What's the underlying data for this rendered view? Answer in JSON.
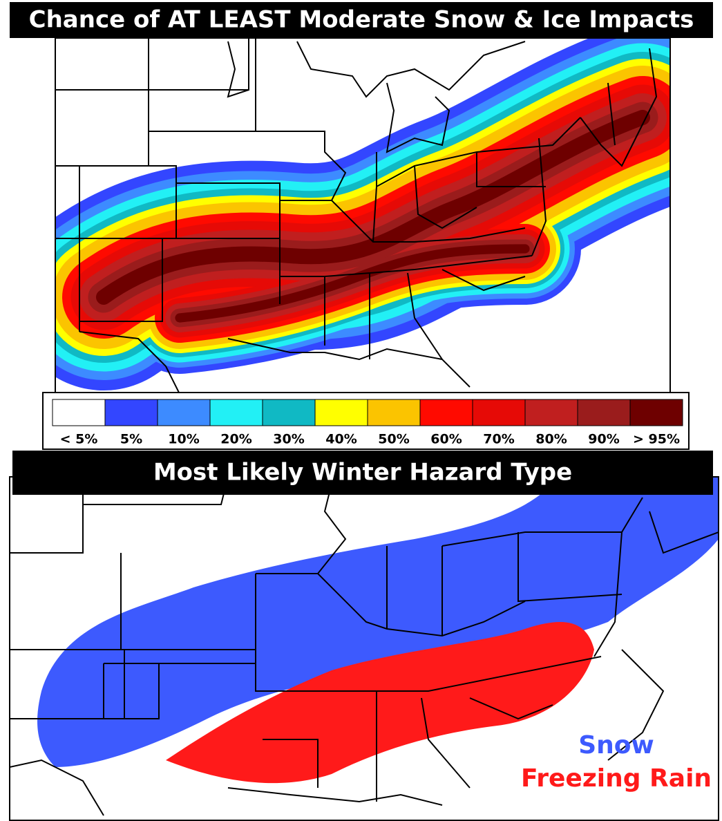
{
  "top_panel": {
    "title": "Chance of AT LEAST Moderate Snow & Ice Impacts",
    "legend": [
      {
        "label": "< 5%",
        "color": "#ffffff"
      },
      {
        "label": "5%",
        "color": "#3346ff"
      },
      {
        "label": "10%",
        "color": "#3d8bff"
      },
      {
        "label": "20%",
        "color": "#22f0f5"
      },
      {
        "label": "30%",
        "color": "#10b9c4"
      },
      {
        "label": "40%",
        "color": "#ffff00"
      },
      {
        "label": "50%",
        "color": "#fbc400"
      },
      {
        "label": "60%",
        "color": "#ff0a00"
      },
      {
        "label": "70%",
        "color": "#e60a06"
      },
      {
        "label": "80%",
        "color": "#c01f1f"
      },
      {
        "label": "90%",
        "color": "#9a1c1c"
      },
      {
        "label": "> 95%",
        "color": "#6e0000"
      }
    ]
  },
  "bottom_panel": {
    "title": "Most Likely Winter Hazard Type",
    "key": [
      {
        "label": "Snow",
        "color": "#3d5afe"
      },
      {
        "label": "Freezing Rain",
        "color": "#ff1a1a"
      }
    ]
  }
}
